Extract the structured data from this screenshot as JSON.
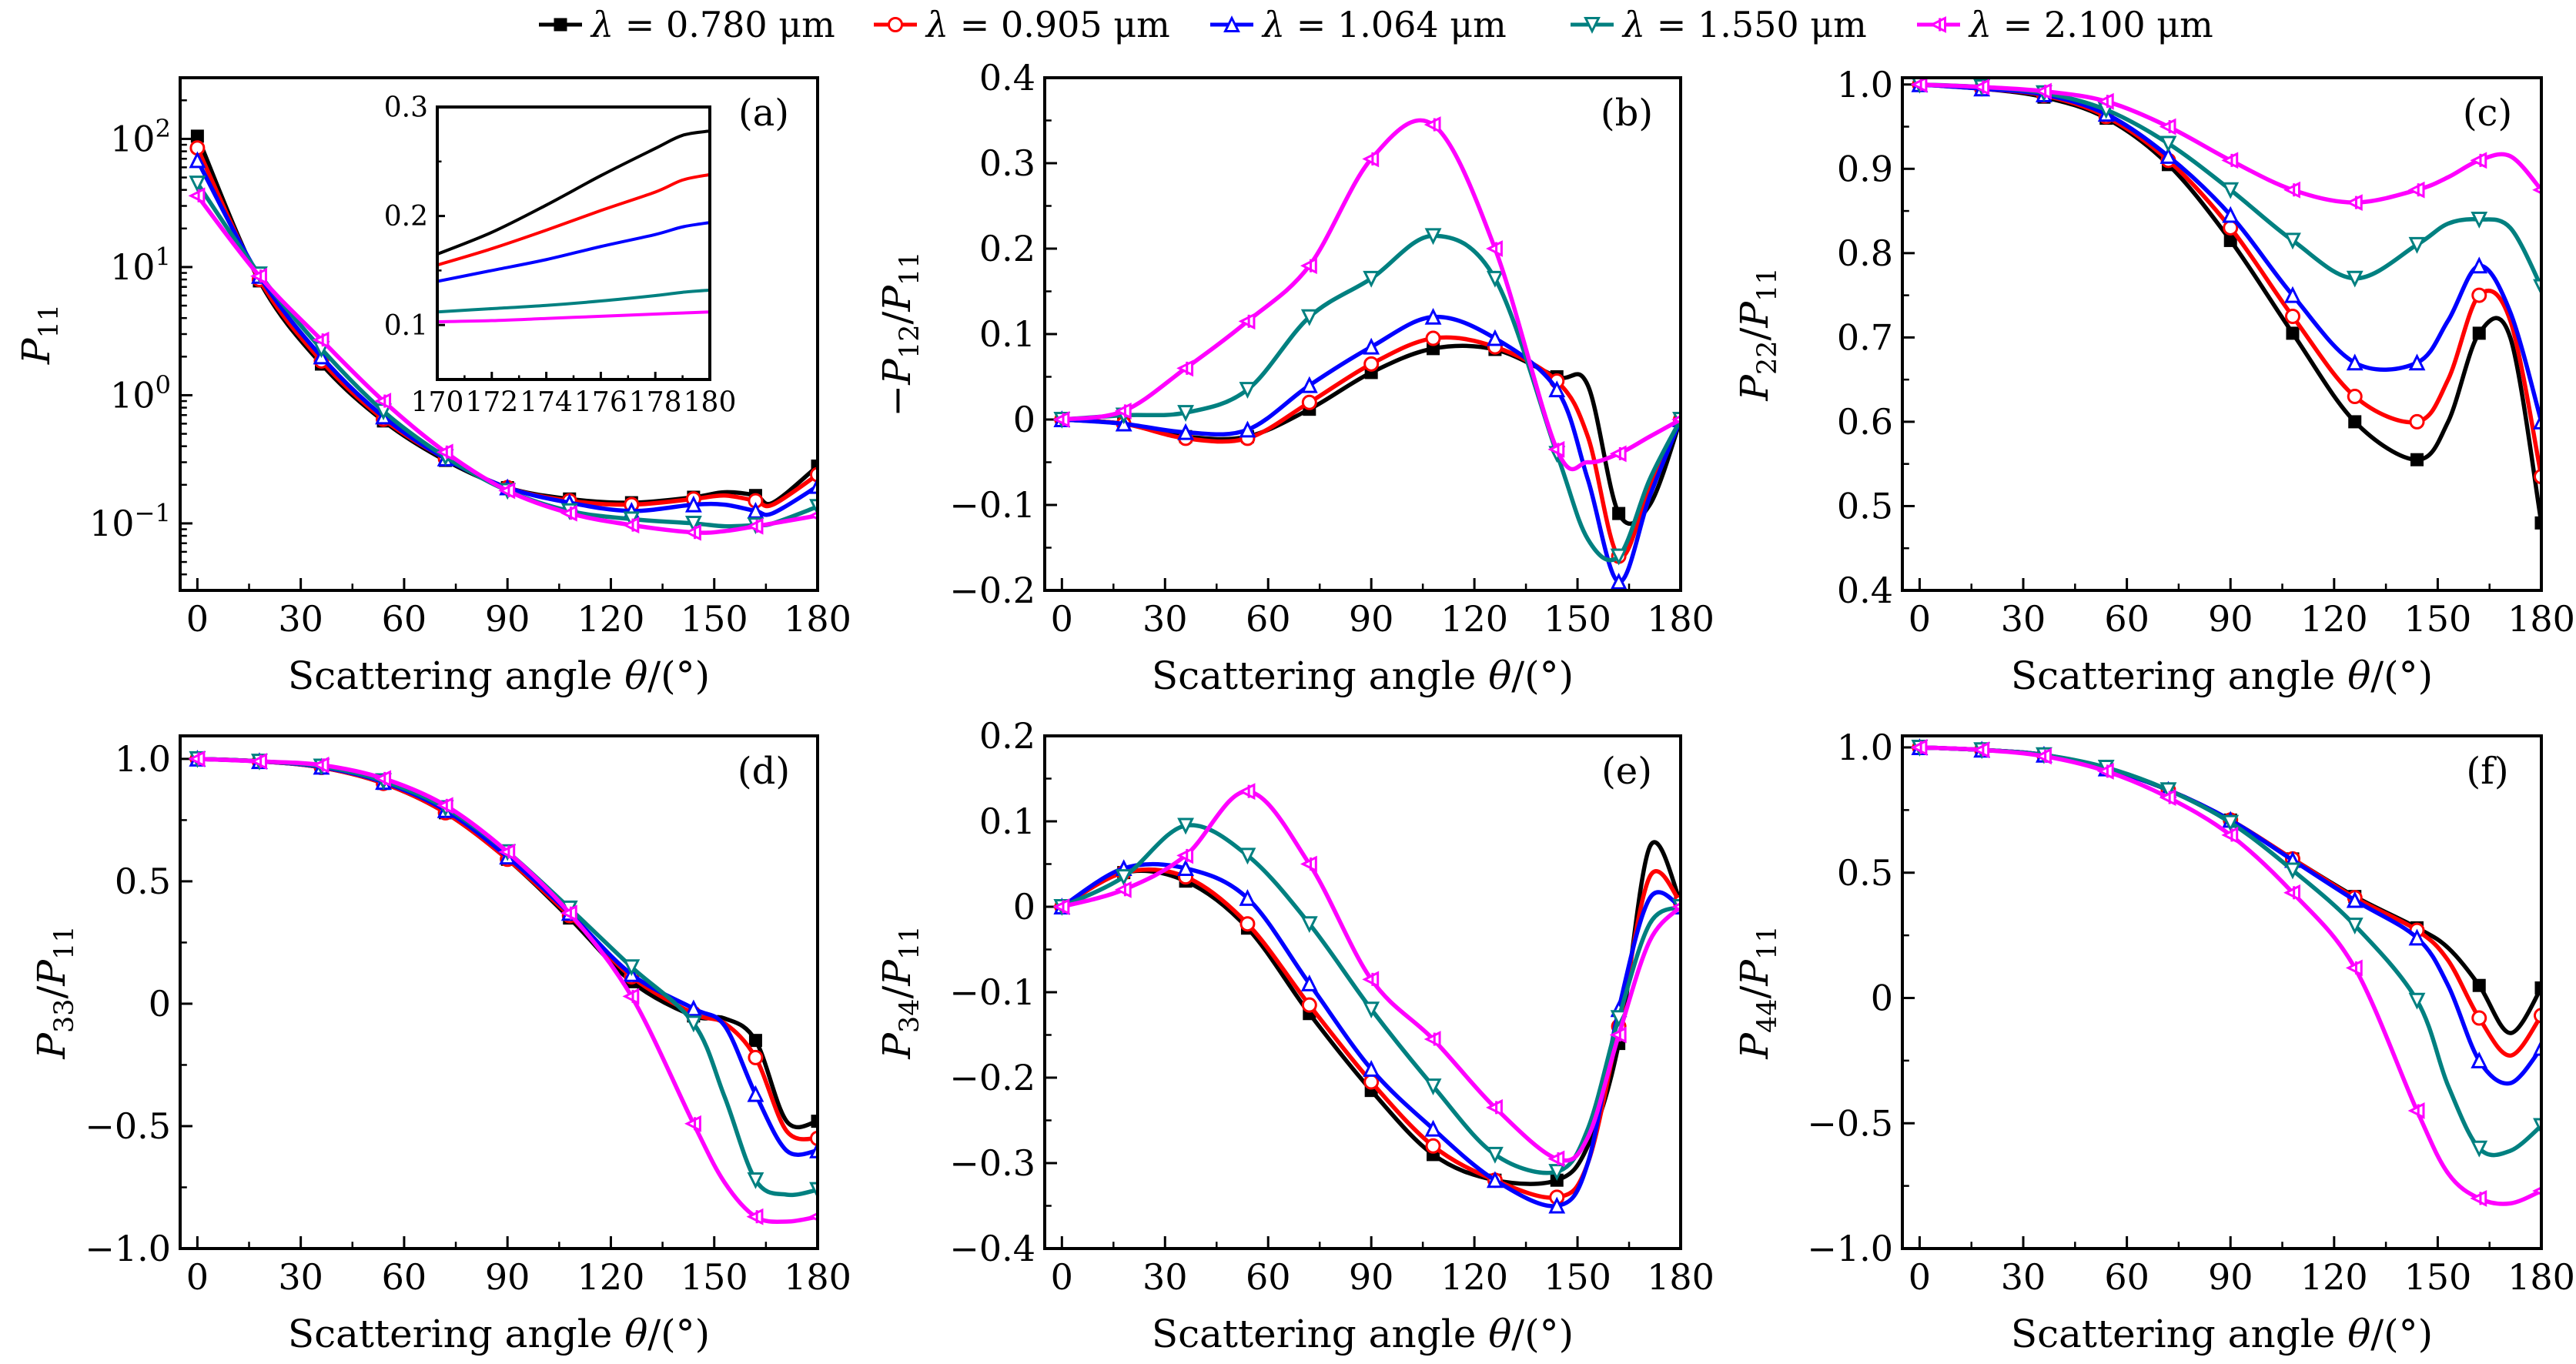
{
  "legend": [
    {
      "name": "λ = 0.780 μm",
      "color": "#000000",
      "marker": "square-filled"
    },
    {
      "name": "λ = 0.905 μm",
      "color": "#ff0000",
      "marker": "circle-open"
    },
    {
      "name": "λ = 1.064 μm",
      "color": "#0000ff",
      "marker": "triangle-up-open"
    },
    {
      "name": "λ = 1.550 μm",
      "color": "#008080",
      "marker": "triangle-down-open"
    },
    {
      "name": "λ = 2.100 μm",
      "color": "#ff00ff",
      "marker": "triangle-left-open"
    }
  ],
  "chart_data": [
    {
      "panel": "(a)",
      "type": "line",
      "ylabel": "P11",
      "xlabel": "Scattering angle θ/(°)",
      "xlim": [
        -5,
        180
      ],
      "xticks": [
        0,
        30,
        60,
        90,
        120,
        150,
        180
      ],
      "yscale": "log",
      "ylim": [
        0.03,
        300
      ],
      "yticks": [
        0.1,
        1,
        10,
        100
      ],
      "yticklabels": [
        "10^−1",
        "10^0",
        "10^1",
        "10^2"
      ],
      "x": [
        0,
        18,
        36,
        54,
        72,
        90,
        108,
        126,
        144,
        153,
        162,
        167,
        180
      ],
      "series": [
        {
          "name": "λ = 0.780 μm",
          "values": [
            105,
            7.8,
            1.75,
            0.63,
            0.31,
            0.19,
            0.155,
            0.145,
            0.16,
            0.175,
            0.165,
            0.145,
            0.28
          ]
        },
        {
          "name": "λ = 0.905 μm",
          "values": [
            85,
            8,
            1.85,
            0.65,
            0.32,
            0.19,
            0.15,
            0.14,
            0.155,
            0.165,
            0.15,
            0.14,
            0.24
          ]
        },
        {
          "name": "λ = 1.064 μm",
          "values": [
            68,
            8.5,
            2.0,
            0.68,
            0.32,
            0.19,
            0.145,
            0.125,
            0.14,
            0.14,
            0.125,
            0.12,
            0.195
          ]
        },
        {
          "name": "λ = 1.550 μm",
          "values": [
            45,
            8.8,
            2.3,
            0.75,
            0.33,
            0.18,
            0.125,
            0.108,
            0.1,
            0.095,
            0.097,
            0.1,
            0.135
          ]
        },
        {
          "name": "λ = 2.100 μm",
          "values": [
            36,
            8.5,
            2.7,
            0.9,
            0.36,
            0.18,
            0.12,
            0.097,
            0.085,
            0.087,
            0.095,
            0.1,
            0.115
          ]
        }
      ],
      "inset": {
        "xlim": [
          170,
          180
        ],
        "xticks": [
          170,
          172,
          174,
          176,
          178,
          180
        ],
        "ylim": [
          0.05,
          0.3
        ],
        "yticks": [
          0.1,
          0.2,
          0.3
        ],
        "yticklabels": [
          "0.1",
          "0.2",
          "0.3"
        ],
        "x": [
          170,
          172,
          174,
          176,
          178,
          179,
          180
        ],
        "series": [
          {
            "name": "λ = 0.780 μm",
            "values": [
              0.165,
              0.185,
              0.21,
              0.237,
              0.262,
              0.274,
              0.278
            ]
          },
          {
            "name": "λ = 0.905 μm",
            "values": [
              0.155,
              0.17,
              0.187,
              0.205,
              0.222,
              0.233,
              0.238
            ]
          },
          {
            "name": "λ = 1.064 μm",
            "values": [
              0.14,
              0.15,
              0.16,
              0.172,
              0.183,
              0.19,
              0.194
            ]
          },
          {
            "name": "λ = 1.550 μm",
            "values": [
              0.112,
              0.115,
              0.118,
              0.122,
              0.127,
              0.13,
              0.132
            ]
          },
          {
            "name": "λ = 2.100 μm",
            "values": [
              0.103,
              0.104,
              0.106,
              0.108,
              0.11,
              0.111,
              0.112
            ]
          }
        ]
      }
    },
    {
      "panel": "(b)",
      "type": "line",
      "ylabel": "−P12/P11",
      "xlabel": "Scattering angle θ/(°)",
      "xlim": [
        -5,
        180
      ],
      "xticks": [
        0,
        30,
        60,
        90,
        120,
        150,
        180
      ],
      "yscale": "linear",
      "ylim": [
        -0.2,
        0.4
      ],
      "yticks": [
        -0.2,
        -0.1,
        0,
        0.1,
        0.2,
        0.3,
        0.4
      ],
      "yticklabels": [
        "−0.2",
        "−0.1",
        "0",
        "0.1",
        "0.2",
        "0.3",
        "0.4"
      ],
      "x": [
        0,
        18,
        36,
        54,
        72,
        90,
        108,
        126,
        144,
        153,
        162,
        171,
        180
      ],
      "series": [
        {
          "name": "λ = 0.780 μm",
          "values": [
            0,
            -0.005,
            -0.02,
            -0.02,
            0.012,
            0.055,
            0.083,
            0.082,
            0.05,
            0.04,
            -0.11,
            -0.1,
            0
          ]
        },
        {
          "name": "λ = 0.905 μm",
          "values": [
            0,
            -0.005,
            -0.022,
            -0.022,
            0.02,
            0.065,
            0.095,
            0.085,
            0.045,
            -0.02,
            -0.16,
            -0.08,
            0
          ]
        },
        {
          "name": "λ = 1.064 μm",
          "values": [
            0,
            -0.005,
            -0.015,
            -0.012,
            0.04,
            0.085,
            0.12,
            0.095,
            0.035,
            -0.07,
            -0.19,
            -0.09,
            0
          ]
        },
        {
          "name": "λ = 1.550 μm",
          "values": [
            0,
            0.005,
            0.008,
            0.035,
            0.12,
            0.165,
            0.215,
            0.165,
            -0.04,
            -0.14,
            -0.16,
            -0.07,
            0
          ]
        },
        {
          "name": "λ = 2.100 μm",
          "values": [
            0,
            0.01,
            0.06,
            0.115,
            0.18,
            0.305,
            0.345,
            0.2,
            -0.035,
            -0.05,
            -0.04,
            -0.02,
            0
          ]
        }
      ]
    },
    {
      "panel": "(c)",
      "type": "line",
      "ylabel": "P22/P11",
      "xlabel": "Scattering angle θ/(°)",
      "xlim": [
        -5,
        180
      ],
      "xticks": [
        0,
        30,
        60,
        90,
        120,
        150,
        180
      ],
      "yscale": "linear",
      "ylim": [
        0.4,
        1.008
      ],
      "yticks": [
        0.4,
        0.5,
        0.6,
        0.7,
        0.8,
        0.9,
        1.0
      ],
      "yticklabels": [
        "0.4",
        "0.5",
        "0.6",
        "0.7",
        "0.8",
        "0.9",
        "1.0"
      ],
      "x": [
        0,
        18,
        36,
        54,
        72,
        90,
        108,
        126,
        144,
        153,
        162,
        171,
        180
      ],
      "series": [
        {
          "name": "λ = 0.780 μm",
          "values": [
            1,
            0.995,
            0.985,
            0.96,
            0.905,
            0.815,
            0.705,
            0.6,
            0.555,
            0.6,
            0.705,
            0.7,
            0.48
          ]
        },
        {
          "name": "λ = 0.905 μm",
          "values": [
            1,
            0.995,
            0.987,
            0.962,
            0.91,
            0.83,
            0.725,
            0.63,
            0.6,
            0.65,
            0.75,
            0.72,
            0.535
          ]
        },
        {
          "name": "λ = 1.064 μm",
          "values": [
            1,
            0.995,
            0.988,
            0.965,
            0.915,
            0.845,
            0.75,
            0.67,
            0.67,
            0.72,
            0.785,
            0.73,
            0.6
          ]
        },
        {
          "name": "λ = 1.550 μm",
          "values": [
            1,
            0.997,
            0.99,
            0.97,
            0.93,
            0.875,
            0.815,
            0.77,
            0.81,
            0.835,
            0.84,
            0.83,
            0.76
          ]
        },
        {
          "name": "λ = 2.100 μm",
          "values": [
            1,
            0.997,
            0.992,
            0.98,
            0.95,
            0.91,
            0.875,
            0.86,
            0.875,
            0.89,
            0.91,
            0.915,
            0.875
          ]
        }
      ]
    },
    {
      "panel": "(d)",
      "type": "line",
      "ylabel": "P33/P11",
      "xlabel": "Scattering angle θ/(°)",
      "xlim": [
        -5,
        180
      ],
      "xticks": [
        0,
        30,
        60,
        90,
        120,
        150,
        180
      ],
      "yscale": "linear",
      "ylim": [
        -1.0,
        1.094
      ],
      "yticks": [
        -1.0,
        -0.5,
        0,
        0.5,
        1.0
      ],
      "yticklabels": [
        "−1.0",
        "−0.5",
        "0",
        "0.5",
        "1.0"
      ],
      "x": [
        0,
        18,
        36,
        54,
        72,
        90,
        108,
        126,
        144,
        153,
        162,
        171,
        180
      ],
      "series": [
        {
          "name": "λ = 0.780 μm",
          "values": [
            1,
            0.99,
            0.965,
            0.9,
            0.78,
            0.59,
            0.35,
            0.09,
            -0.05,
            -0.06,
            -0.15,
            -0.48,
            -0.48
          ]
        },
        {
          "name": "λ = 0.905 μm",
          "values": [
            1,
            0.99,
            0.965,
            0.9,
            0.78,
            0.59,
            0.36,
            0.11,
            -0.04,
            -0.08,
            -0.22,
            -0.52,
            -0.55
          ]
        },
        {
          "name": "λ = 1.064 μm",
          "values": [
            1,
            0.99,
            0.967,
            0.905,
            0.79,
            0.6,
            0.37,
            0.12,
            -0.02,
            -0.09,
            -0.37,
            -0.6,
            -0.6
          ]
        },
        {
          "name": "λ = 1.550 μm",
          "values": [
            1,
            0.99,
            0.97,
            0.91,
            0.8,
            0.62,
            0.39,
            0.15,
            -0.08,
            -0.38,
            -0.72,
            -0.78,
            -0.76
          ]
        },
        {
          "name": "λ = 2.100 μm",
          "values": [
            1,
            0.99,
            0.975,
            0.92,
            0.81,
            0.62,
            0.37,
            0.03,
            -0.49,
            -0.73,
            -0.87,
            -0.89,
            -0.87
          ]
        }
      ]
    },
    {
      "panel": "(e)",
      "type": "line",
      "ylabel": "P34/P11",
      "xlabel": "Scattering angle θ/(°)",
      "xlim": [
        -5,
        180
      ],
      "xticks": [
        0,
        30,
        60,
        90,
        120,
        150,
        180
      ],
      "yscale": "linear",
      "ylim": [
        -0.4,
        0.2
      ],
      "yticks": [
        -0.4,
        -0.3,
        -0.2,
        -0.1,
        0,
        0.1,
        0.2
      ],
      "yticklabels": [
        "−0.4",
        "−0.3",
        "−0.2",
        "−0.1",
        "0",
        "0.1",
        "0.2"
      ],
      "x": [
        0,
        18,
        36,
        54,
        72,
        90,
        108,
        126,
        144,
        153,
        162,
        171,
        180
      ],
      "series": [
        {
          "name": "λ = 0.780 μm",
          "values": [
            0,
            0.04,
            0.03,
            -0.025,
            -0.125,
            -0.215,
            -0.29,
            -0.32,
            -0.32,
            -0.28,
            -0.16,
            0.07,
            0.005
          ]
        },
        {
          "name": "λ = 0.905 μm",
          "values": [
            0,
            0.04,
            0.035,
            -0.02,
            -0.115,
            -0.205,
            -0.28,
            -0.32,
            -0.34,
            -0.3,
            -0.14,
            0.035,
            0.005
          ]
        },
        {
          "name": "λ = 1.064 μm",
          "values": [
            0,
            0.045,
            0.045,
            0.01,
            -0.09,
            -0.19,
            -0.26,
            -0.32,
            -0.35,
            -0.3,
            -0.12,
            0.01,
            0
          ]
        },
        {
          "name": "λ = 1.550 μm",
          "values": [
            0,
            0.035,
            0.095,
            0.06,
            -0.02,
            -0.12,
            -0.21,
            -0.29,
            -0.31,
            -0.26,
            -0.13,
            -0.02,
            0
          ]
        },
        {
          "name": "λ = 2.100 μm",
          "values": [
            0,
            0.02,
            0.06,
            0.135,
            0.05,
            -0.085,
            -0.155,
            -0.235,
            -0.295,
            -0.27,
            -0.15,
            -0.04,
            0
          ]
        }
      ]
    },
    {
      "panel": "(f)",
      "type": "line",
      "ylabel": "P44/P11",
      "xlabel": "Scattering angle θ/(°)",
      "xlim": [
        -5,
        180
      ],
      "xticks": [
        0,
        30,
        60,
        90,
        120,
        150,
        180
      ],
      "yscale": "linear",
      "ylim": [
        -1.0,
        1.046
      ],
      "yticks": [
        -1.0,
        -0.5,
        0,
        0.5,
        1.0
      ],
      "yticklabels": [
        "−1.0",
        "−0.5",
        "0",
        "0.5",
        "1.0"
      ],
      "x": [
        0,
        18,
        36,
        54,
        72,
        90,
        108,
        126,
        144,
        153,
        162,
        171,
        180
      ],
      "series": [
        {
          "name": "λ = 0.780 μm",
          "values": [
            1,
            0.99,
            0.97,
            0.915,
            0.83,
            0.71,
            0.555,
            0.405,
            0.28,
            0.2,
            0.05,
            -0.14,
            0.04
          ]
        },
        {
          "name": "λ = 0.905 μm",
          "values": [
            1,
            0.99,
            0.97,
            0.915,
            0.83,
            0.71,
            0.555,
            0.4,
            0.27,
            0.15,
            -0.08,
            -0.23,
            -0.07
          ]
        },
        {
          "name": "λ = 1.064 μm",
          "values": [
            1,
            0.99,
            0.97,
            0.915,
            0.83,
            0.71,
            0.55,
            0.39,
            0.24,
            0.05,
            -0.25,
            -0.34,
            -0.2
          ]
        },
        {
          "name": "λ = 1.550 μm",
          "values": [
            1,
            0.99,
            0.97,
            0.92,
            0.83,
            0.7,
            0.51,
            0.29,
            -0.01,
            -0.35,
            -0.6,
            -0.61,
            -0.51
          ]
        },
        {
          "name": "λ = 2.100 μm",
          "values": [
            1,
            0.99,
            0.965,
            0.905,
            0.8,
            0.65,
            0.42,
            0.12,
            -0.45,
            -0.7,
            -0.8,
            -0.82,
            -0.77
          ]
        }
      ]
    }
  ]
}
